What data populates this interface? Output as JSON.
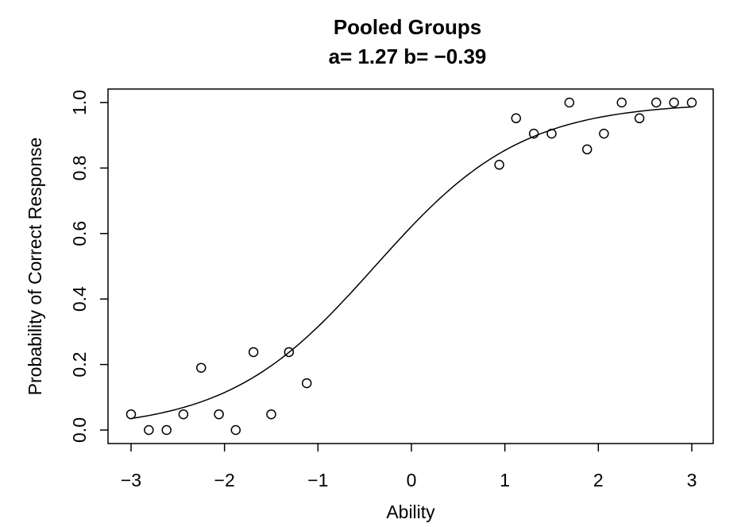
{
  "chart_data": {
    "type": "scatter",
    "title": "Pooled Groups",
    "subtitle": "a= 1.27 b= −0.39",
    "xlabel": "Ability",
    "ylabel": "Probability of Correct Response",
    "xlim": [
      -3,
      3
    ],
    "ylim": [
      0,
      1
    ],
    "x_ticks": [
      -3,
      -2,
      -1,
      0,
      1,
      2,
      3
    ],
    "x_tick_labels": [
      "−3",
      "−2",
      "−1",
      "0",
      "1",
      "2",
      "3"
    ],
    "y_ticks": [
      0,
      0.2,
      0.4,
      0.6,
      0.8,
      1.0
    ],
    "y_tick_labels": [
      "0.0",
      "0.2",
      "0.4",
      "0.6",
      "0.8",
      "1.0"
    ],
    "grid": false,
    "curve": {
      "a": 1.27,
      "b": -0.39
    },
    "points": [
      {
        "x": -3.0,
        "y": 0.048
      },
      {
        "x": -2.81,
        "y": 0.0
      },
      {
        "x": -2.62,
        "y": 0.0
      },
      {
        "x": -2.44,
        "y": 0.048
      },
      {
        "x": -2.25,
        "y": 0.19
      },
      {
        "x": -2.06,
        "y": 0.048
      },
      {
        "x": -1.88,
        "y": 0.0
      },
      {
        "x": -1.69,
        "y": 0.238
      },
      {
        "x": -1.5,
        "y": 0.048
      },
      {
        "x": -1.31,
        "y": 0.238
      },
      {
        "x": -1.12,
        "y": 0.143
      },
      {
        "x": 0.94,
        "y": 0.81
      },
      {
        "x": 1.12,
        "y": 0.952
      },
      {
        "x": 1.31,
        "y": 0.905
      },
      {
        "x": 1.5,
        "y": 0.905
      },
      {
        "x": 1.69,
        "y": 1.0
      },
      {
        "x": 1.88,
        "y": 0.857
      },
      {
        "x": 2.06,
        "y": 0.905
      },
      {
        "x": 2.25,
        "y": 1.0
      },
      {
        "x": 2.44,
        "y": 0.952
      },
      {
        "x": 2.62,
        "y": 1.0
      },
      {
        "x": 2.81,
        "y": 1.0
      },
      {
        "x": 3.0,
        "y": 1.0
      }
    ]
  }
}
